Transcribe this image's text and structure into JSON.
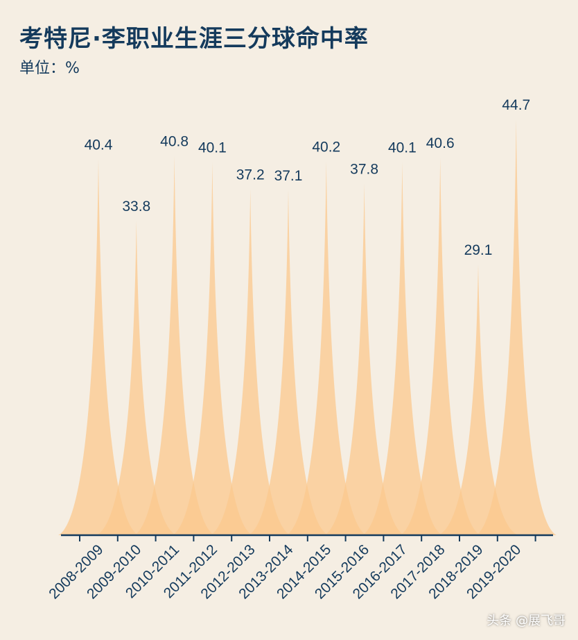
{
  "title": "考特尼·李职业生涯三分球命中率",
  "subtitle": "单位：%",
  "watermark": "头条 @展飞哥",
  "colors": {
    "fill": "#fbc88e",
    "axis": "#143a5c",
    "text": "#143a5c",
    "background": "#f5eee3"
  },
  "chart_data": {
    "type": "area",
    "categories": [
      "2008-2009",
      "2009-2010",
      "2010-2011",
      "2011-2012",
      "2012-2013",
      "2013-2014",
      "2014-2015",
      "2015-2016",
      "2016-2017",
      "2017-2018",
      "2018-2019",
      "2019-2020"
    ],
    "values": [
      40.4,
      33.8,
      40.8,
      40.1,
      37.2,
      37.1,
      40.2,
      37.8,
      40.1,
      40.6,
      29.1,
      44.7
    ],
    "data_labels": [
      "40.4",
      "33.8",
      "40.8",
      "40.1",
      "37.2",
      "37.1",
      "40.2",
      "37.8",
      "40.1",
      "40.6",
      "29.1",
      "44.7"
    ],
    "title": "考特尼·李职业生涯三分球命中率",
    "unit": "单位：%",
    "xlabel": "",
    "ylabel": "",
    "ylim": [
      0,
      45
    ],
    "grid": false,
    "legend": "none"
  }
}
